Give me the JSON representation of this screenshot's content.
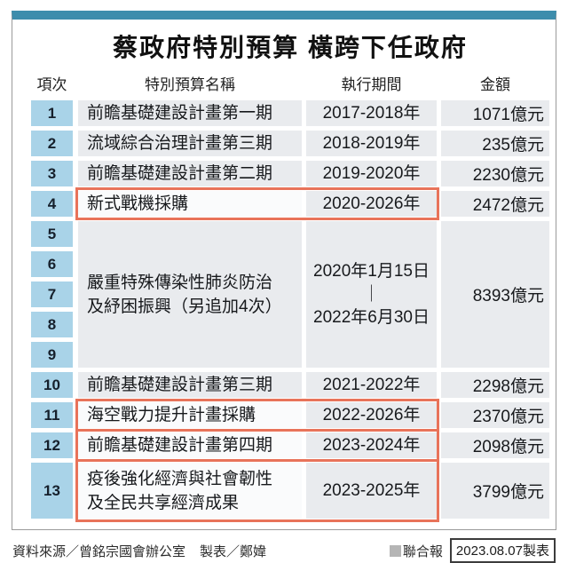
{
  "title": "蔡政府特別預算 橫跨下任政府",
  "colors": {
    "accent_teal_bar": "#3d8dac",
    "item_number_cell_blue": "#a9d3e8",
    "row_cell_gray": "#e9ebee",
    "highlight_border_red": "#e8735a"
  },
  "chart_data": {
    "type": "table",
    "title": "蔡政府特別預算 橫跨下任政府",
    "columns": [
      "項次",
      "特別預算名稱",
      "執行期間",
      "金額"
    ],
    "amount_unit": "億元",
    "rows": [
      {
        "item_nums": [
          "1"
        ],
        "span": 1,
        "name_lines": [
          "前瞻基礎建設計畫第一期"
        ],
        "period_lines": [
          "2017-2018年"
        ],
        "amount": "1071億元",
        "amount_value": 1071,
        "highlighted": false
      },
      {
        "item_nums": [
          "2"
        ],
        "span": 1,
        "name_lines": [
          "流域綜合治理計畫第三期"
        ],
        "period_lines": [
          "2018-2019年"
        ],
        "amount": "235億元",
        "amount_value": 235,
        "highlighted": false
      },
      {
        "item_nums": [
          "3"
        ],
        "span": 1,
        "name_lines": [
          "前瞻基礎建設計畫第二期"
        ],
        "period_lines": [
          "2019-2020年"
        ],
        "amount": "2230億元",
        "amount_value": 2230,
        "highlighted": false
      },
      {
        "item_nums": [
          "4"
        ],
        "span": 1,
        "name_lines": [
          "新式戰機採購"
        ],
        "period_lines": [
          "2020-2026年"
        ],
        "amount": "2472億元",
        "amount_value": 2472,
        "highlighted": true
      },
      {
        "item_nums": [
          "5",
          "6",
          "7",
          "8",
          "9"
        ],
        "span": 5,
        "name_lines": [
          "嚴重特殊傳染性肺炎防治",
          "及紓困振興（另追加4次）"
        ],
        "period_lines": [
          "2020年1月15日",
          "｜",
          "2022年6月30日"
        ],
        "amount": "8393億元",
        "amount_value": 8393,
        "highlighted": false
      },
      {
        "item_nums": [
          "10"
        ],
        "span": 1,
        "name_lines": [
          "前瞻基礎建設計畫第三期"
        ],
        "period_lines": [
          "2021-2022年"
        ],
        "amount": "2298億元",
        "amount_value": 2298,
        "highlighted": false
      },
      {
        "item_nums": [
          "11"
        ],
        "span": 1,
        "name_lines": [
          "海空戰力提升計畫採購"
        ],
        "period_lines": [
          "2022-2026年"
        ],
        "amount": "2370億元",
        "amount_value": 2370,
        "highlighted": true
      },
      {
        "item_nums": [
          "12"
        ],
        "span": 1,
        "name_lines": [
          "前瞻基礎建設計畫第四期"
        ],
        "period_lines": [
          "2023-2024年"
        ],
        "amount": "2098億元",
        "amount_value": 2098,
        "highlighted": true
      },
      {
        "item_nums": [
          "13"
        ],
        "span": 2,
        "name_lines": [
          "疫後強化經濟與社會韌性",
          "及全民共享經濟成果"
        ],
        "period_lines": [
          "2023-2025年"
        ],
        "amount": "3799億元",
        "amount_value": 3799,
        "highlighted": true
      }
    ]
  },
  "footer": {
    "source": "資料來源／曾銘宗國會辦公室",
    "maker": "製表／鄭媁",
    "brand": "聯合報",
    "date_label": "2023.08.07製表"
  }
}
